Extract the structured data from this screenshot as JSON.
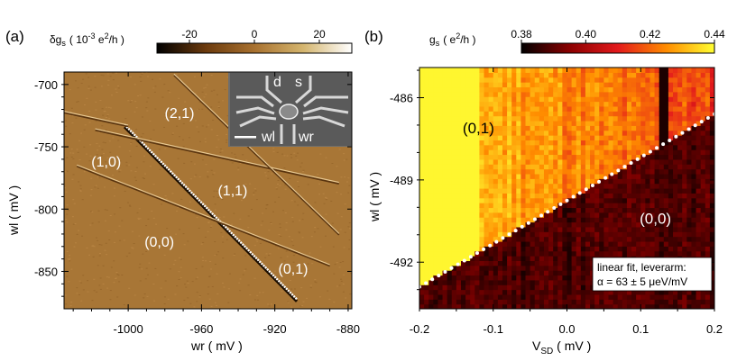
{
  "chart_data": [
    {
      "panel": "(a)",
      "type": "heatmap",
      "title": "",
      "colorbar": {
        "label_prefix": "δg",
        "label_sub": "s",
        "label_units_pre": "( 10",
        "label_units_exp": "-3",
        "label_units_post": " e",
        "label_units_exp2": "2",
        "label_units_end": "/h )",
        "range": [
          -30,
          30
        ],
        "ticks": [
          -20,
          0,
          20
        ],
        "tick_labels": [
          "-20",
          "0",
          "20"
        ],
        "colors": [
          "#000000",
          "#6b3a0d",
          "#a8712f",
          "#d4b56e",
          "#ffffff"
        ]
      },
      "xlabel": "wr  ( mV )",
      "ylabel": "wl  ( mV )",
      "xlim": [
        -1035,
        -878
      ],
      "ylim": [
        -880,
        -690
      ],
      "xticks": [
        -1000,
        -960,
        -920,
        -880
      ],
      "xtick_labels": [
        "-1000",
        "-960",
        "-920",
        "-880"
      ],
      "yticks": [
        -700,
        -750,
        -800,
        -850
      ],
      "ytick_labels": [
        "-700",
        "-750",
        "-800",
        "-850"
      ],
      "background_color": "#a87636",
      "lines": [
        {
          "name": "strong-transition",
          "x": [
            -1002,
            -908
          ],
          "y": [
            -733,
            -873
          ]
        },
        {
          "name": "line-upper-1",
          "x": [
            -1018,
            -885
          ],
          "y": [
            -736,
            -779
          ]
        },
        {
          "name": "line-upper-2",
          "x": [
            -975,
            -885
          ],
          "y": [
            -692,
            -820
          ]
        },
        {
          "name": "line-upper-3",
          "x": [
            -945,
            -885
          ],
          "y": [
            -692,
            -738
          ]
        },
        {
          "name": "line-lower-1",
          "x": [
            -1028,
            -890
          ],
          "y": [
            -765,
            -845
          ]
        },
        {
          "name": "line-left-top",
          "x": [
            -1035,
            -1000
          ],
          "y": [
            -722,
            -733
          ]
        }
      ],
      "annotations": [
        {
          "text": "(2,1)",
          "x": -972,
          "y": -727
        },
        {
          "text": "(1,0)",
          "x": -1012,
          "y": -766
        },
        {
          "text": "(1,1)",
          "x": -943,
          "y": -789
        },
        {
          "text": "(0,0)",
          "x": -983,
          "y": -830
        },
        {
          "text": "(0,1)",
          "x": -910,
          "y": -852
        }
      ],
      "inset_labels": {
        "d": "d",
        "s": "s",
        "wl": "wl",
        "wr": "wr"
      }
    },
    {
      "panel": "(b)",
      "type": "heatmap",
      "title": "",
      "colorbar": {
        "label_prefix": "g",
        "label_sub": "s",
        "label_units_pre": "( e",
        "label_units_exp": "2",
        "label_units_end": "/h )",
        "range": [
          0.38,
          0.44
        ],
        "ticks": [
          0.38,
          0.4,
          0.42,
          0.44
        ],
        "tick_labels": [
          "0.38",
          "0.40",
          "0.42",
          "0.44"
        ],
        "colors": [
          "#000000",
          "#8b0000",
          "#e31a1c",
          "#ff8c00",
          "#ffff33"
        ]
      },
      "xlabel_main": "V",
      "xlabel_sub": "SD",
      "xlabel_units": "  ( mV )",
      "ylabel": "wl  ( mV )",
      "xlim": [
        -0.2,
        0.2
      ],
      "ylim": [
        -493.7,
        -484.9
      ],
      "xticks": [
        -0.2,
        -0.1,
        0.0,
        0.1,
        0.2
      ],
      "xtick_labels": [
        "-0.2",
        "-0.1",
        "0.0",
        "0.1",
        "0.2"
      ],
      "yticks": [
        -486,
        -489,
        -492
      ],
      "ytick_labels": [
        "-486",
        "-489",
        "-492"
      ],
      "boundary_fit": {
        "x": [
          -0.2,
          0.2
        ],
        "y": [
          -492.9,
          -486.6
        ]
      },
      "dark_column": {
        "x": 0.133,
        "y_from": -484.9,
        "y_to": -487.1
      },
      "annotations": [
        {
          "text": "(0,1)",
          "x": -0.12,
          "y": -487.3
        },
        {
          "text": "(0,0)",
          "x": 0.12,
          "y": -490.6
        }
      ],
      "legend": {
        "line1": "linear fit, leverarm:",
        "line2": "α = 63 ± 5 μeV/mV"
      }
    }
  ]
}
